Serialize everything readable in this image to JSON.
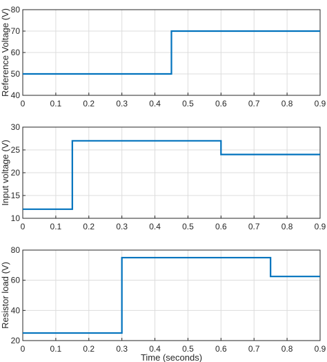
{
  "chart_data": [
    {
      "type": "line",
      "title": "",
      "xlabel": "",
      "ylabel": "Reference Voltage (V)",
      "xlim": [
        0,
        0.9
      ],
      "ylim": [
        40,
        80
      ],
      "xticks": [
        0,
        0.1,
        0.2,
        0.3,
        0.4,
        0.5,
        0.6,
        0.7,
        0.8,
        0.9
      ],
      "xtick_labels": [
        "0",
        "0.1",
        "0.2",
        "0.3",
        "0.4",
        "0.5",
        "0.6",
        "0.7",
        "0.8",
        "0.9"
      ],
      "yticks": [
        40,
        50,
        60,
        70,
        80
      ],
      "ytick_labels": [
        "40",
        "50",
        "60",
        "70",
        "80"
      ],
      "grid": true,
      "step": true,
      "series": [
        {
          "x": [
            0,
            0.45,
            0.45,
            0.9
          ],
          "y": [
            50,
            50,
            70,
            70
          ],
          "color": "#0072bd"
        }
      ]
    },
    {
      "type": "line",
      "title": "",
      "xlabel": "",
      "ylabel": "Input voltage (V)",
      "xlim": [
        0,
        0.9
      ],
      "ylim": [
        10,
        30
      ],
      "xticks": [
        0,
        0.1,
        0.2,
        0.3,
        0.4,
        0.5,
        0.6,
        0.7,
        0.8,
        0.9
      ],
      "xtick_labels": [
        "0",
        "0.1",
        "0.2",
        "0.3",
        "0.4",
        "0.5",
        "0.6",
        "0.7",
        "0.8",
        "0.9"
      ],
      "yticks": [
        10,
        15,
        20,
        25,
        30
      ],
      "ytick_labels": [
        "10",
        "15",
        "20",
        "25",
        "30"
      ],
      "grid": true,
      "step": true,
      "series": [
        {
          "x": [
            0,
            0.15,
            0.15,
            0.6,
            0.6,
            0.9
          ],
          "y": [
            12,
            12,
            27,
            27,
            24,
            24
          ],
          "color": "#0072bd"
        }
      ]
    },
    {
      "type": "line",
      "title": "",
      "xlabel": "Time (seconds)",
      "ylabel": "Resistor load (V)",
      "xlim": [
        0,
        0.9
      ],
      "ylim": [
        20,
        80
      ],
      "xticks": [
        0,
        0.1,
        0.2,
        0.3,
        0.4,
        0.5,
        0.6,
        0.7,
        0.8,
        0.9
      ],
      "xtick_labels": [
        "0",
        "0.1",
        "0.2",
        "0.3",
        "0.4",
        "0.5",
        "0.6",
        "0.7",
        "0.8",
        "0.9"
      ],
      "yticks": [
        20,
        40,
        60,
        80
      ],
      "ytick_labels": [
        "20",
        "40",
        "60",
        "80"
      ],
      "grid": true,
      "step": true,
      "series": [
        {
          "x": [
            0,
            0.3,
            0.3,
            0.75,
            0.75,
            0.9
          ],
          "y": [
            25,
            25,
            75,
            75,
            62.5,
            62.5
          ],
          "color": "#0072bd"
        }
      ]
    }
  ]
}
